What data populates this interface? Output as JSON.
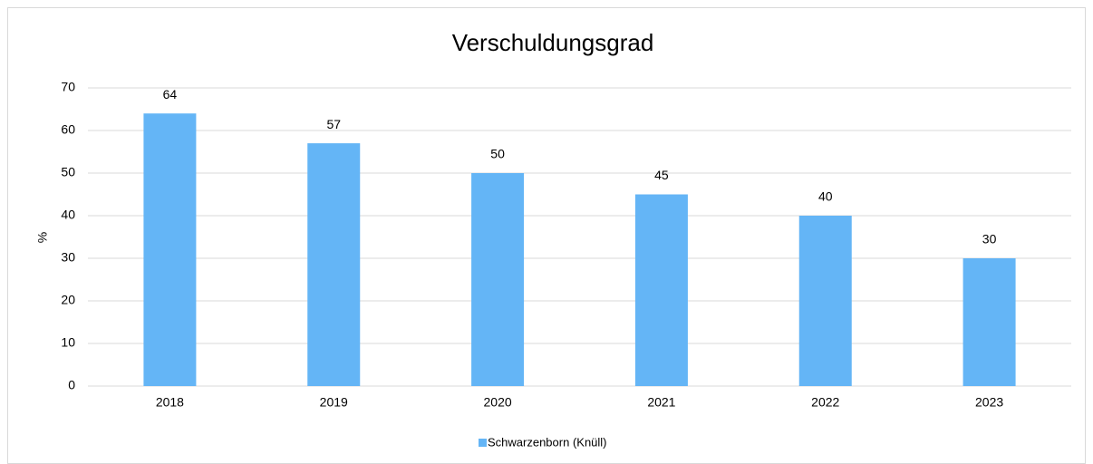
{
  "chart_data": {
    "type": "bar",
    "title": "Verschuldungsgrad",
    "y_label": "%",
    "categories": [
      "2018",
      "2019",
      "2020",
      "2021",
      "2022",
      "2023"
    ],
    "series": [
      {
        "name": "Schwarzenborn (Knüll)",
        "color": "#64b5f6",
        "values": [
          64,
          57,
          50,
          45,
          40,
          30
        ]
      }
    ],
    "ylim": [
      0,
      70
    ],
    "yticks": [
      0,
      10,
      20,
      30,
      40,
      50,
      60,
      70
    ],
    "grid": true,
    "legend": "bottom"
  }
}
